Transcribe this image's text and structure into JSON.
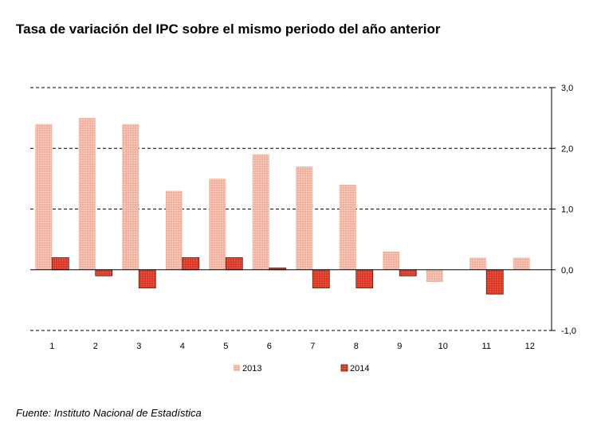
{
  "title": "Tasa de variación del IPC sobre el mismo periodo del año anterior",
  "source": "Fuente: Instituto Nacional de Estadística",
  "colors": {
    "s2013": "#f4b8a6",
    "s2014": "#e0402c",
    "s2014_border": "#5a1a10",
    "grid": "#000000"
  },
  "chart_data": {
    "type": "bar",
    "title": "Tasa de variación del IPC sobre el mismo periodo del año anterior",
    "categories": [
      "1",
      "2",
      "3",
      "4",
      "5",
      "6",
      "7",
      "8",
      "9",
      "10",
      "11",
      "12"
    ],
    "series": [
      {
        "name": "2013",
        "values": [
          2.4,
          2.5,
          2.4,
          1.3,
          1.5,
          1.9,
          1.7,
          1.4,
          0.3,
          -0.2,
          0.2,
          0.2
        ]
      },
      {
        "name": "2014",
        "values": [
          0.2,
          -0.1,
          -0.3,
          0.2,
          0.2,
          0.03,
          -0.3,
          -0.3,
          -0.1,
          null,
          -0.4,
          null
        ]
      }
    ],
    "ylim": [
      -1.0,
      3.0
    ],
    "yticks": [
      "3,0",
      "2,0",
      "1,0",
      "0,0",
      "-1,0"
    ],
    "ytick_values": [
      3.0,
      2.0,
      1.0,
      0.0,
      -1.0
    ],
    "y_axis_side": "right",
    "grid": true,
    "legend_position": "bottom-center"
  }
}
